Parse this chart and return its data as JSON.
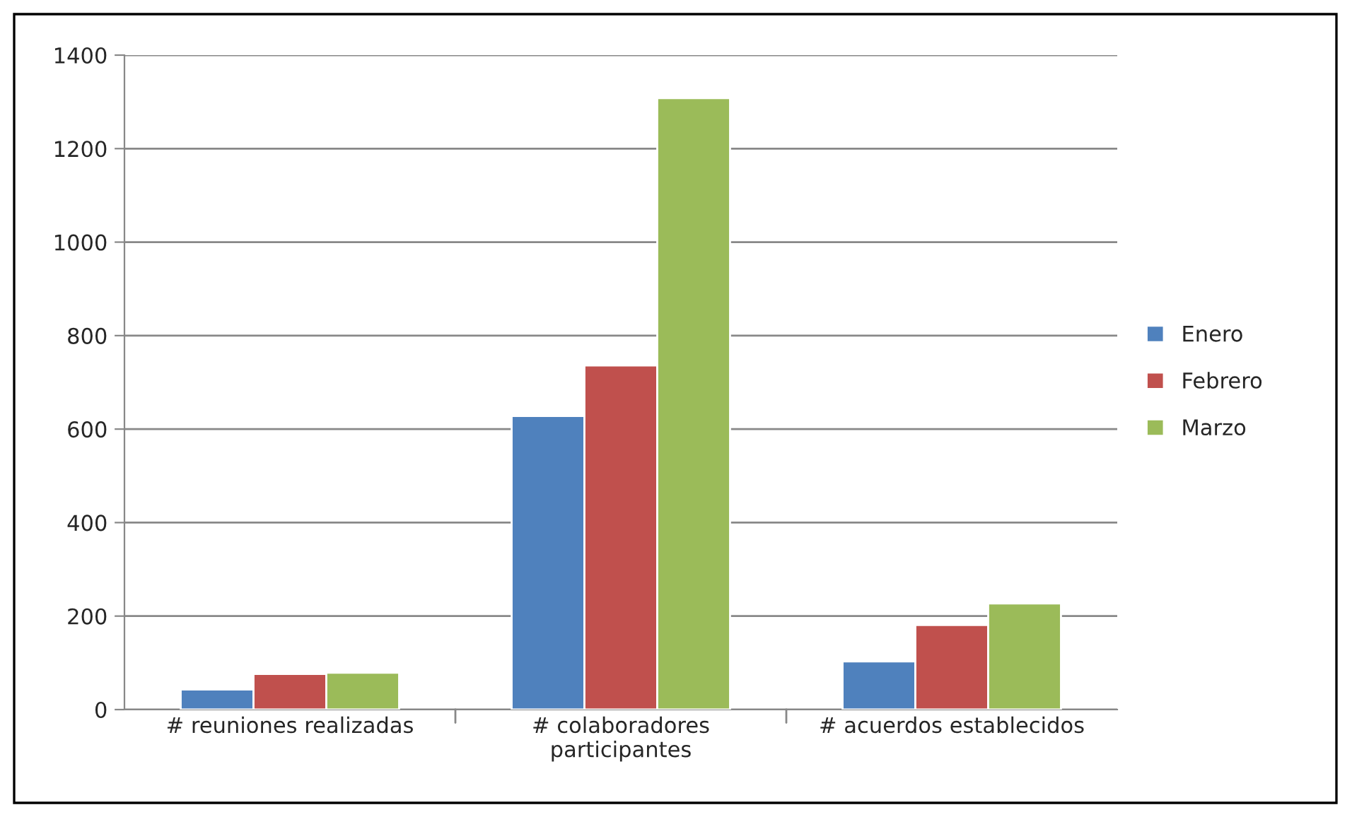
{
  "chart_data": {
    "type": "bar",
    "categories": [
      "# reuniones realizadas",
      "# colaboradores\nparticipantes",
      "# acuerdos establecidos"
    ],
    "series": [
      {
        "name": "Enero",
        "color": "#4f81bd",
        "values": [
          43,
          628,
          103
        ]
      },
      {
        "name": "Febrero",
        "color": "#c0504d",
        "values": [
          76,
          736,
          181
        ]
      },
      {
        "name": "Marzo",
        "color": "#9bbb59",
        "values": [
          79,
          1308,
          227
        ]
      }
    ],
    "ylim": [
      0,
      1400
    ],
    "yticks": [
      0,
      200,
      400,
      600,
      800,
      1000,
      1200,
      1400
    ],
    "grid": "y",
    "legend": "right"
  }
}
